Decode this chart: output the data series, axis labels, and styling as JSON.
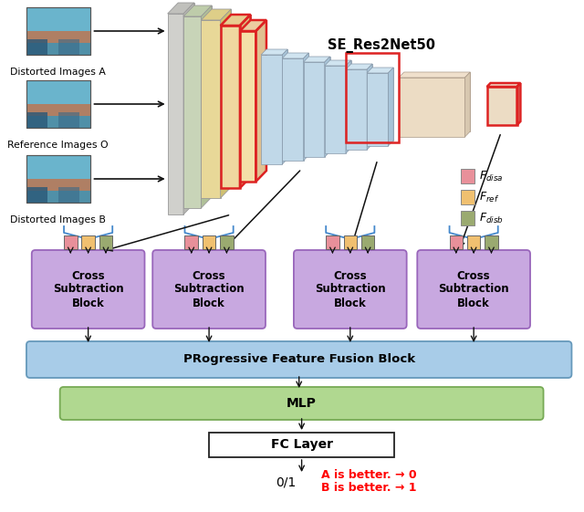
{
  "title": "SE_Res2Net50",
  "image_labels": [
    "Distorted Images A",
    "Reference Images O",
    "Distorted Images B"
  ],
  "legend_labels": [
    "$F_{disa}$",
    "$F_{ref}$",
    "$F_{disb}$"
  ],
  "legend_colors": [
    "#e8909a",
    "#f0c070",
    "#9aaa70"
  ],
  "csb_label": "Cross\nSubtraction\nBlock",
  "pffb_label": "PRogressive Feature Fusion Block",
  "mlp_label": "MLP",
  "fc_label": "FC Layer",
  "output_label": "0/1",
  "output_a": "A is better. → 0",
  "output_b": "B is better. → 1",
  "bg_color": "#ffffff",
  "csb_color": "#c8a8e0",
  "csb_ec": "#9966bb",
  "pffb_color": "#a8cce8",
  "pffb_ec": "#6699bb",
  "mlp_color": "#b0d890",
  "mlp_ec": "#77aa55",
  "fc_color": "#ffffff",
  "cube_color_front": "#c0d8e8",
  "cube_color_top": "#d0e4f0",
  "cube_color_right": "#a8c4d8",
  "layer_gray": "#d0d0cc",
  "layer_green": "#c8d4b8",
  "layer_yellow": "#e8d898",
  "layer_cream": "#f0d8a0",
  "layer_cream2": "#f4e0a8",
  "small_cube_color": "#e8d4b8",
  "tiny_cube_color": "#ecdcc4",
  "red_border": "#dd2222",
  "arrow_color": "#111111",
  "sq_disa": "#e8909a",
  "sq_ref": "#f0c070",
  "sq_disb": "#9aaa70"
}
